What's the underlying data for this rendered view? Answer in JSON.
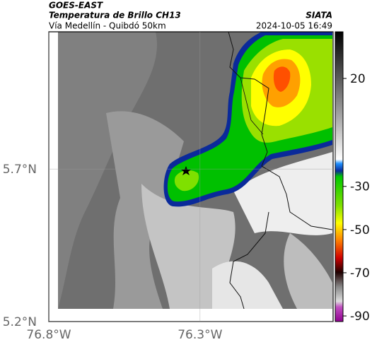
{
  "header": {
    "title": "GOES-EAST",
    "subtitle": "Temperatura de Brillo CH13",
    "source": "SIATA",
    "region": "Vía Medellín - Quibdó 50km",
    "timestamp": "2024-10-05 16:49"
  },
  "map": {
    "xlim": [
      -76.8,
      -75.86
    ],
    "ylim": [
      5.2,
      6.15
    ],
    "xticks": [
      {
        "value": -76.8,
        "label": "76.8°W"
      },
      {
        "value": -76.3,
        "label": "76.3°W"
      }
    ],
    "yticks": [
      {
        "value": 5.2,
        "label": "5.2°N"
      },
      {
        "value": 5.7,
        "label": "5.7°N"
      }
    ],
    "grid": true
  },
  "colorbar": {
    "lim": [
      -92.6,
      41.6
    ],
    "ticks": [
      20,
      -30,
      -50,
      -70,
      -90
    ]
  }
}
